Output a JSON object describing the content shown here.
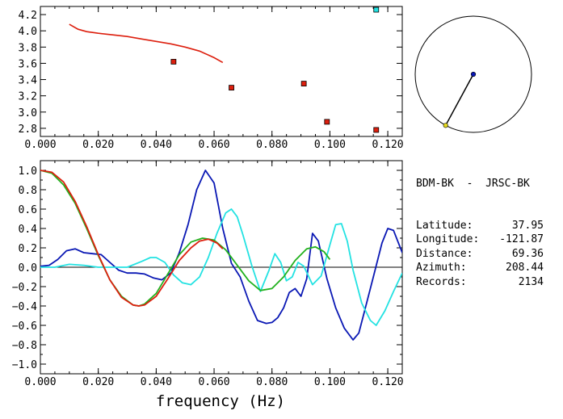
{
  "info_panel": {
    "station_pair": "BDM-BK  -  JRSC-BK",
    "rows": [
      {
        "label": "Latitude:",
        "value": "37.95"
      },
      {
        "label": "Longitude:",
        "value": "-121.87"
      },
      {
        "label": "Distance:",
        "value": "69.36"
      },
      {
        "label": "Azimuth:",
        "value": "208.44"
      },
      {
        "label": "Records:",
        "value": "2134"
      }
    ]
  },
  "colors": {
    "red": "#dd1f0e",
    "green": "#22b11e",
    "blue": "#0a18b4",
    "cyan": "#23e2e2",
    "black": "#000000"
  },
  "chart_data": [
    {
      "type": "scatter",
      "title": "",
      "xlabel": "",
      "ylabel": "",
      "xlim": [
        0.0,
        0.125
      ],
      "ylim": [
        2.7,
        4.3
      ],
      "x_ticks": [
        "0.000",
        "0.020",
        "0.040",
        "0.060",
        "0.080",
        "0.100",
        "0.120"
      ],
      "y_ticks": [
        "2.8",
        "3.0",
        "3.2",
        "3.4",
        "3.6",
        "3.8",
        "4.0",
        "4.2"
      ],
      "curve": {
        "color": "#dd1f0e",
        "x": [
          0.01,
          0.013,
          0.016,
          0.02,
          0.025,
          0.03,
          0.035,
          0.04,
          0.045,
          0.05,
          0.055,
          0.06,
          0.063
        ],
        "y": [
          4.08,
          4.02,
          3.99,
          3.97,
          3.95,
          3.93,
          3.9,
          3.87,
          3.84,
          3.8,
          3.75,
          3.67,
          3.61
        ]
      },
      "points": [
        {
          "x": 0.046,
          "y": 3.62,
          "color": "#dd1f0e"
        },
        {
          "x": 0.066,
          "y": 3.3,
          "color": "#dd1f0e"
        },
        {
          "x": 0.091,
          "y": 3.35,
          "color": "#dd1f0e"
        },
        {
          "x": 0.099,
          "y": 2.88,
          "color": "#dd1f0e"
        },
        {
          "x": 0.116,
          "y": 2.78,
          "color": "#dd1f0e"
        },
        {
          "x": 0.116,
          "y": 4.26,
          "color": "#23e2e2"
        }
      ]
    },
    {
      "type": "line",
      "title": "",
      "xlabel": "frequency (Hz)",
      "ylabel": "",
      "xlim": [
        0.0,
        0.125
      ],
      "ylim": [
        -1.1,
        1.1
      ],
      "x_ticks": [
        "0.000",
        "0.020",
        "0.040",
        "0.060",
        "0.080",
        "0.100",
        "0.120"
      ],
      "y_ticks": [
        "1.0",
        "0.8",
        "0.6",
        "0.4",
        "0.2",
        "0.0",
        "-0.2",
        "-0.4",
        "-0.6",
        "-0.8",
        "-1.0"
      ],
      "zero_line": true,
      "series": [
        {
          "color": "#0a18b4",
          "x": [
            0.0,
            0.003,
            0.006,
            0.009,
            0.012,
            0.015,
            0.018,
            0.021,
            0.024,
            0.027,
            0.03,
            0.033,
            0.036,
            0.039,
            0.042,
            0.045,
            0.048,
            0.051,
            0.054,
            0.057,
            0.06,
            0.063,
            0.066,
            0.069,
            0.072,
            0.075,
            0.078,
            0.08,
            0.082,
            0.084,
            0.086,
            0.088,
            0.09,
            0.092,
            0.094,
            0.096,
            0.099,
            0.102,
            0.105,
            0.108,
            0.11,
            0.112,
            0.115,
            0.118,
            0.12,
            0.122,
            0.125
          ],
          "y": [
            0.01,
            0.02,
            0.08,
            0.17,
            0.19,
            0.15,
            0.14,
            0.13,
            0.05,
            -0.03,
            -0.06,
            -0.06,
            -0.07,
            -0.11,
            -0.13,
            -0.06,
            0.15,
            0.44,
            0.8,
            1.0,
            0.87,
            0.4,
            0.04,
            -0.1,
            -0.35,
            -0.55,
            -0.58,
            -0.57,
            -0.52,
            -0.42,
            -0.26,
            -0.22,
            -0.3,
            -0.12,
            0.35,
            0.27,
            -0.12,
            -0.42,
            -0.63,
            -0.75,
            -0.68,
            -0.45,
            -0.1,
            0.25,
            0.4,
            0.38,
            0.15
          ]
        },
        {
          "color": "#23e2e2",
          "x": [
            0.0,
            0.005,
            0.01,
            0.015,
            0.02,
            0.025,
            0.03,
            0.035,
            0.038,
            0.04,
            0.043,
            0.046,
            0.049,
            0.052,
            0.055,
            0.058,
            0.061,
            0.064,
            0.066,
            0.068,
            0.07,
            0.073,
            0.076,
            0.079,
            0.081,
            0.083,
            0.085,
            0.087,
            0.089,
            0.091,
            0.094,
            0.097,
            0.1,
            0.102,
            0.104,
            0.106,
            0.108,
            0.111,
            0.114,
            0.116,
            0.119,
            0.122,
            0.125
          ],
          "y": [
            0.0,
            0.0,
            0.03,
            0.02,
            0.0,
            0.0,
            0.0,
            0.06,
            0.1,
            0.1,
            0.05,
            -0.08,
            -0.16,
            -0.18,
            -0.1,
            0.1,
            0.35,
            0.56,
            0.6,
            0.52,
            0.33,
            0.02,
            -0.25,
            -0.03,
            0.14,
            0.05,
            -0.14,
            -0.1,
            0.05,
            0.01,
            -0.18,
            -0.09,
            0.23,
            0.44,
            0.45,
            0.27,
            -0.03,
            -0.37,
            -0.55,
            -0.6,
            -0.45,
            -0.25,
            -0.06
          ]
        },
        {
          "color": "#22b11e",
          "x": [
            0.0,
            0.004,
            0.008,
            0.012,
            0.016,
            0.02,
            0.024,
            0.028,
            0.032,
            0.034,
            0.036,
            0.04,
            0.044,
            0.048,
            0.052,
            0.056,
            0.058,
            0.06,
            0.064,
            0.068,
            0.072,
            0.076,
            0.08,
            0.084,
            0.088,
            0.092,
            0.095,
            0.098,
            0.1
          ],
          "y": [
            1.0,
            0.97,
            0.85,
            0.66,
            0.4,
            0.12,
            -0.13,
            -0.3,
            -0.39,
            -0.4,
            -0.38,
            -0.27,
            -0.07,
            0.13,
            0.26,
            0.3,
            0.29,
            0.28,
            0.18,
            0.02,
            -0.14,
            -0.24,
            -0.22,
            -0.1,
            0.07,
            0.19,
            0.21,
            0.16,
            0.08
          ]
        },
        {
          "color": "#dd1f0e",
          "x": [
            0.0,
            0.004,
            0.008,
            0.012,
            0.016,
            0.02,
            0.024,
            0.028,
            0.032,
            0.034,
            0.036,
            0.04,
            0.044,
            0.048,
            0.052,
            0.055,
            0.058,
            0.061,
            0.063
          ],
          "y": [
            1.0,
            0.98,
            0.88,
            0.68,
            0.42,
            0.13,
            -0.13,
            -0.31,
            -0.39,
            -0.4,
            -0.39,
            -0.3,
            -0.12,
            0.07,
            0.2,
            0.27,
            0.29,
            0.25,
            0.19
          ]
        }
      ]
    }
  ],
  "azimuth_diagram": {
    "azimuth_deg": 208.44,
    "center_dot_color": "#0a18b4",
    "end_dot_color": "#e3d81c"
  }
}
